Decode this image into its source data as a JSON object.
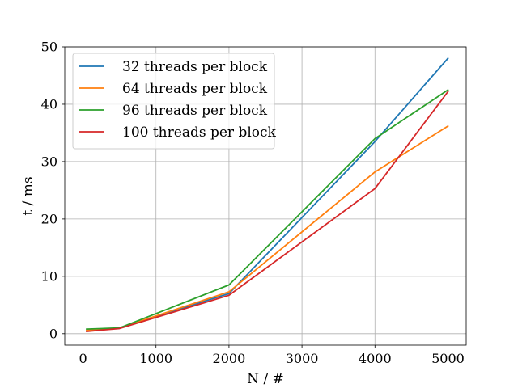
{
  "chart_data": {
    "type": "line",
    "title": "",
    "xlabel": "N / #",
    "ylabel": "t / ms",
    "xlim": [
      -250,
      5250
    ],
    "ylim": [
      -2,
      50
    ],
    "xticks": [
      0,
      1000,
      2000,
      3000,
      4000,
      5000
    ],
    "yticks": [
      0,
      10,
      20,
      30,
      40,
      50
    ],
    "xtick_labels": [
      "0",
      "1000",
      "2000",
      "3000",
      "4000",
      "5000"
    ],
    "ytick_labels": [
      "0",
      "10",
      "20",
      "30",
      "40",
      "50"
    ],
    "grid": true,
    "legend_position": "top-left",
    "x": [
      50,
      500,
      2000,
      4000,
      5000
    ],
    "series": [
      {
        "name": "32 threads per block",
        "color": "#1f77b4",
        "values": [
          0.5,
          1.0,
          7.0,
          33.5,
          48.0
        ]
      },
      {
        "name": "64 threads per block",
        "color": "#ff7f0e",
        "values": [
          0.6,
          1.0,
          7.3,
          28.2,
          36.2
        ]
      },
      {
        "name": "96 threads per block",
        "color": "#2ca02c",
        "values": [
          0.8,
          1.0,
          8.5,
          34.0,
          42.5
        ]
      },
      {
        "name": "100 threads per block",
        "color": "#d62728",
        "values": [
          0.4,
          0.9,
          6.7,
          25.3,
          42.2
        ]
      }
    ]
  }
}
